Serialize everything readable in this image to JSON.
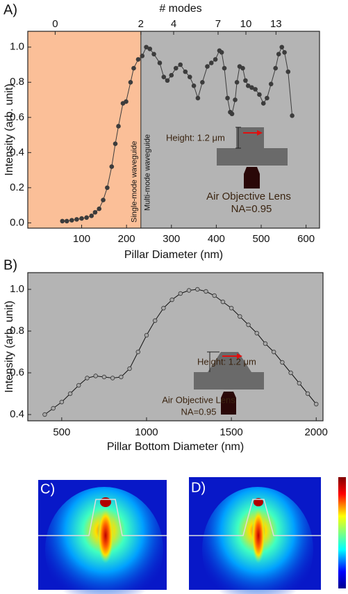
{
  "chart_data": [
    {
      "type": "line",
      "panel_label": "A)",
      "x_label": "Pillar Diameter (nm)",
      "y_label": "Intensity (arb. unit)",
      "x2_label": "# modes",
      "xlim": [
        -20,
        630
      ],
      "xticks": [
        100,
        200,
        300,
        400,
        500,
        600
      ],
      "x2ticks": [
        {
          "value": 41,
          "label": "0"
        },
        {
          "value": 232,
          "label": "2"
        },
        {
          "value": 305,
          "label": "4"
        },
        {
          "value": 404,
          "label": "7"
        },
        {
          "value": 466,
          "label": "10"
        },
        {
          "value": 533,
          "label": "13"
        }
      ],
      "ylim": [
        -0.03,
        1.09
      ],
      "yticks": [
        {
          "value": 0,
          "label": "0.0"
        },
        0.2,
        0.4,
        0.6,
        0.8,
        {
          "value": 1,
          "label": "1.0"
        }
      ],
      "single_mode_cutoff": 232,
      "single_mode_color": "#fbbf98",
      "background": "#b4b4b4",
      "single_mode_text": "Single-mode waveguide",
      "multi_mode_text": "Multi-mode waveguide",
      "color": "#3c3c3c",
      "marker_color": "#3c3c3c",
      "x": [
        57,
        67,
        78,
        89,
        100,
        111,
        122,
        130,
        139,
        148,
        157,
        167,
        175,
        182,
        192,
        199,
        209,
        216,
        226,
        235,
        244,
        252,
        261,
        274,
        283,
        291,
        300,
        310,
        320,
        331,
        341,
        350,
        359,
        369,
        380,
        389,
        398,
        407,
        412,
        418,
        425,
        431,
        435,
        442,
        446,
        452,
        459,
        465,
        471,
        479,
        487,
        496,
        505,
        513,
        522,
        532,
        539,
        546,
        552,
        560,
        569
      ],
      "values": [
        0.01,
        0.01,
        0.015,
        0.02,
        0.025,
        0.03,
        0.04,
        0.06,
        0.08,
        0.13,
        0.2,
        0.32,
        0.45,
        0.55,
        0.68,
        0.69,
        0.8,
        0.88,
        0.93,
        0.95,
        1.0,
        0.99,
        0.96,
        0.91,
        0.83,
        0.81,
        0.84,
        0.88,
        0.9,
        0.86,
        0.83,
        0.78,
        0.71,
        0.8,
        0.89,
        0.91,
        0.93,
        0.98,
        0.97,
        0.88,
        0.71,
        0.63,
        0.62,
        0.7,
        0.8,
        0.89,
        0.88,
        0.81,
        0.78,
        0.77,
        0.76,
        0.73,
        0.68,
        0.71,
        0.79,
        0.88,
        0.96,
        1.0,
        0.97,
        0.86,
        0.61
      ],
      "annotations": {
        "height": "Height: 1.2 μm",
        "objective": "Air Objective Lens",
        "na": "NA=0.95"
      }
    },
    {
      "type": "line",
      "panel_label": "B)",
      "x_label": "Pillar Bottom Diameter (nm)",
      "y_label": "Intensity (arb. unit)",
      "xlim": [
        300,
        2040
      ],
      "xticks": [
        500,
        1000,
        1500,
        2000
      ],
      "ylim": [
        0.37,
        1.08
      ],
      "yticks": [
        0.4,
        0.6,
        0.8,
        {
          "value": 1,
          "label": "1.0"
        }
      ],
      "background": "#b4b4b4",
      "color": "#111111",
      "marker_color": "#a8a8a8",
      "x": [
        400,
        450,
        500,
        550,
        600,
        650,
        700,
        750,
        800,
        850,
        900,
        950,
        1000,
        1050,
        1100,
        1150,
        1200,
        1250,
        1300,
        1350,
        1400,
        1450,
        1500,
        1550,
        1600,
        1650,
        1700,
        1750,
        1800,
        1850,
        1900,
        1950,
        2000
      ],
      "values": [
        0.4,
        0.43,
        0.46,
        0.5,
        0.54,
        0.575,
        0.585,
        0.58,
        0.575,
        0.58,
        0.62,
        0.7,
        0.78,
        0.85,
        0.91,
        0.95,
        0.98,
        0.995,
        1.0,
        0.99,
        0.97,
        0.94,
        0.91,
        0.87,
        0.83,
        0.79,
        0.74,
        0.7,
        0.65,
        0.6,
        0.55,
        0.5,
        0.45
      ],
      "annotations": {
        "height": "Height: 1.2 μm",
        "objective": "Air Objective Lens",
        "na": "NA=0.95"
      }
    }
  ],
  "field_maps": [
    {
      "label": "C)"
    },
    {
      "label": "D)"
    }
  ]
}
